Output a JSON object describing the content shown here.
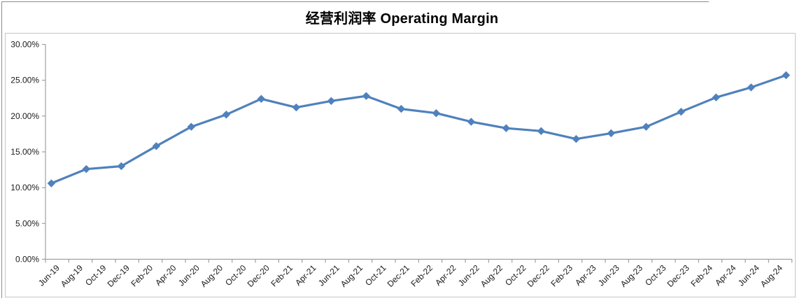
{
  "page": {
    "title": "经营利润率 Operating Margin"
  },
  "chart_data": {
    "type": "line",
    "title": "经营利润率 Operating Margin",
    "legend": "none",
    "grid": false,
    "line_color": "#4F81BD",
    "marker_shape": "diamond",
    "axis_color": "#a0a0a0",
    "y_axis": {
      "min_pct": 0,
      "max_pct": 30,
      "tick_step_pct": 5,
      "tick_labels": [
        "0.00%",
        "5.00%",
        "10.00%",
        "15.00%",
        "20.00%",
        "25.00%",
        "30.00%"
      ]
    },
    "x_axis": {
      "label_interval_months": 2,
      "total_span_months": 64,
      "tick_labels": [
        "Jun-19",
        "Aug-19",
        "Oct-19",
        "Dec-19",
        "Feb-20",
        "Apr-20",
        "Jun-20",
        "Aug-20",
        "Oct-20",
        "Dec-20",
        "Feb-21",
        "Apr-21",
        "Jun-21",
        "Aug-21",
        "Oct-21",
        "Dec-21",
        "Feb-22",
        "Apr-22",
        "Jun-22",
        "Aug-22",
        "Oct-22",
        "Dec-22",
        "Feb-23",
        "Apr-23",
        "Jun-23",
        "Aug-23",
        "Oct-23",
        "Dec-23",
        "Feb-24",
        "Apr-24",
        "Jun-24",
        "Aug-24"
      ]
    },
    "series": [
      {
        "periods": [
          "Jun-19",
          "Sep-19",
          "Dec-19",
          "Mar-20",
          "Jun-20",
          "Sep-20",
          "Dec-20",
          "Mar-21",
          "Jun-21",
          "Sep-21",
          "Dec-21",
          "Mar-22",
          "Jun-22",
          "Sep-22",
          "Dec-22",
          "Mar-23",
          "Jun-23",
          "Sep-23",
          "Dec-23",
          "Mar-24",
          "Jun-24",
          "Sep-24"
        ],
        "month_index": [
          0,
          3,
          6,
          9,
          12,
          15,
          18,
          21,
          24,
          27,
          30,
          33,
          36,
          39,
          42,
          45,
          48,
          51,
          54,
          57,
          60,
          63
        ],
        "values_pct": [
          10.6,
          12.6,
          13.0,
          15.8,
          18.5,
          20.2,
          22.4,
          21.2,
          22.1,
          22.8,
          21.0,
          20.4,
          19.2,
          18.3,
          17.9,
          16.8,
          17.6,
          18.5,
          20.6,
          22.6,
          24.0,
          25.7
        ]
      }
    ]
  }
}
